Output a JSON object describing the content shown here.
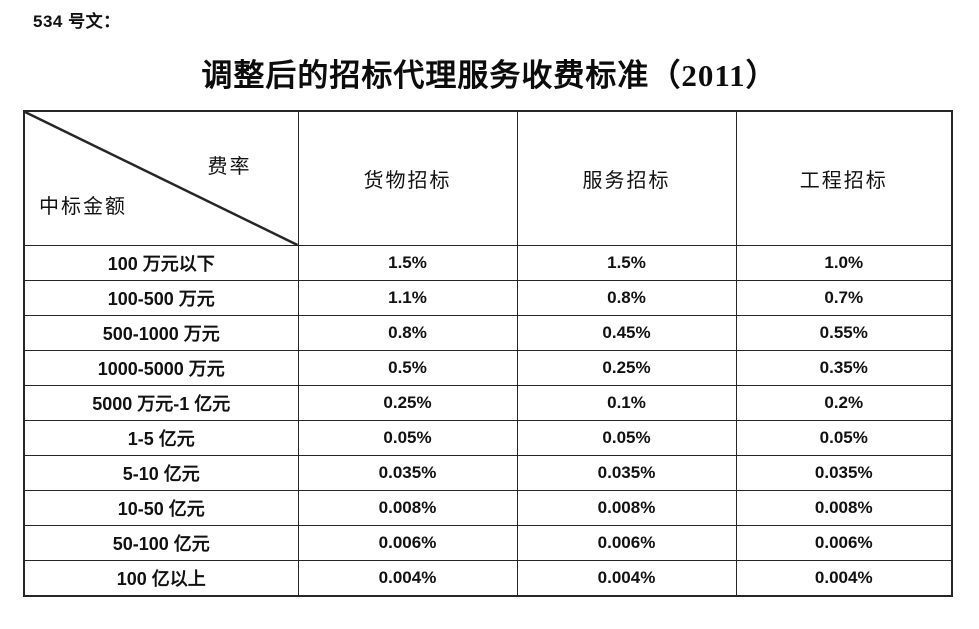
{
  "page": {
    "doc_label": "534 号文：",
    "title": "调整后的招标代理服务收费标准（2011）"
  },
  "table": {
    "corner": {
      "top_right": "费率",
      "bottom_left": "中标金额"
    },
    "columns": [
      "货物招标",
      "服务招标",
      "工程招标"
    ],
    "rows": [
      {
        "label": "100 万元以下",
        "values": [
          "1.5%",
          "1.5%",
          "1.0%"
        ]
      },
      {
        "label": "100-500 万元",
        "values": [
          "1.1%",
          "0.8%",
          "0.7%"
        ]
      },
      {
        "label": "500-1000 万元",
        "values": [
          "0.8%",
          "0.45%",
          "0.55%"
        ]
      },
      {
        "label": "1000-5000 万元",
        "values": [
          "0.5%",
          "0.25%",
          "0.35%"
        ]
      },
      {
        "label": "5000 万元-1 亿元",
        "values": [
          "0.25%",
          "0.1%",
          "0.2%"
        ]
      },
      {
        "label": "1-5 亿元",
        "values": [
          "0.05%",
          "0.05%",
          "0.05%"
        ]
      },
      {
        "label": "5-10 亿元",
        "values": [
          "0.035%",
          "0.035%",
          "0.035%"
        ]
      },
      {
        "label": "10-50 亿元",
        "values": [
          "0.008%",
          "0.008%",
          "0.008%"
        ]
      },
      {
        "label": "50-100 亿元",
        "values": [
          "0.006%",
          "0.006%",
          "0.006%"
        ]
      },
      {
        "label": "100 亿以上",
        "values": [
          "0.004%",
          "0.004%",
          "0.004%"
        ]
      }
    ]
  },
  "colors": {
    "border": "#262626",
    "text": "#111111",
    "background": "#ffffff"
  }
}
